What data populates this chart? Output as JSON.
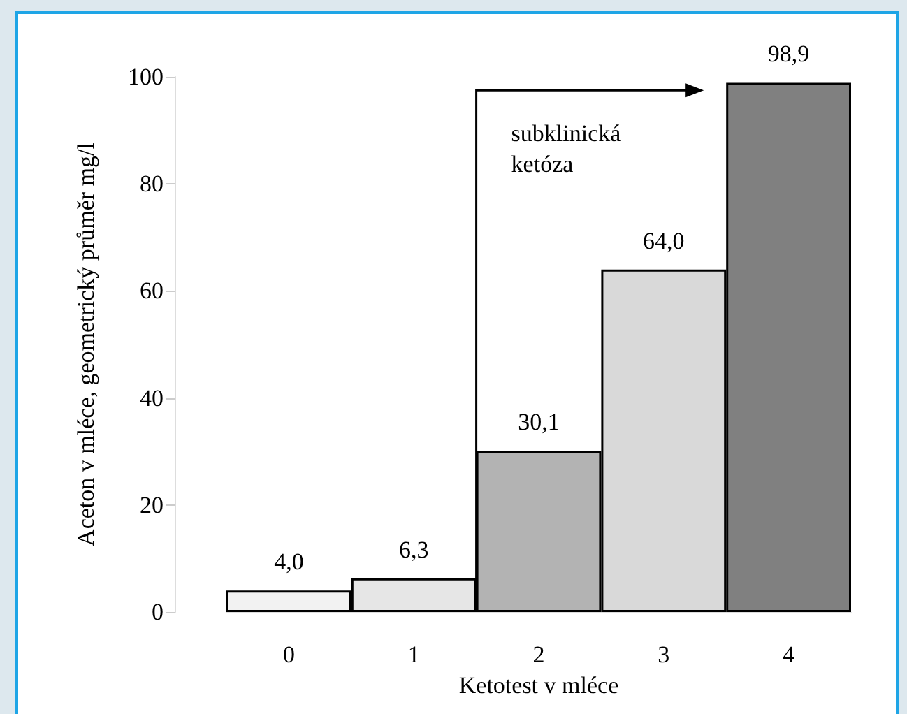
{
  "chart_data": {
    "type": "bar",
    "xlabel": "Ketotest v mléce",
    "ylabel": "Aceton v mléce, geometrický průměr mg/l",
    "categories": [
      "0",
      "1",
      "2",
      "3",
      "4"
    ],
    "values": [
      4.0,
      6.3,
      30.1,
      64.0,
      98.9
    ],
    "colors": [
      "#f2f2f2",
      "#e6e6e6",
      "#b3b3b3",
      "#d9d9d9",
      "#808080"
    ],
    "value_labels": [
      "4,0",
      "6,3",
      "30,1",
      "64,0",
      "98,9"
    ],
    "ylim": [
      0,
      100
    ],
    "yticks": [
      0,
      20,
      40,
      60,
      80,
      100
    ],
    "annotations": [
      "subklinická\nketóza"
    ]
  }
}
